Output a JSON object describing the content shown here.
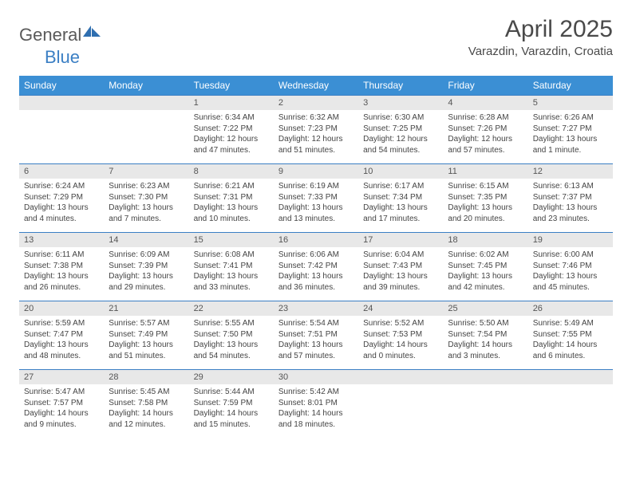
{
  "brand": {
    "text1": "General",
    "text2": "Blue"
  },
  "title": "April 2025",
  "location": "Varazdin, Varazdin, Croatia",
  "colors": {
    "header_blue": "#3b8fd4",
    "rule_blue": "#3b7fc4",
    "daynum_bg": "#e8e8e8",
    "text": "#444444"
  },
  "weekdays": [
    "Sunday",
    "Monday",
    "Tuesday",
    "Wednesday",
    "Thursday",
    "Friday",
    "Saturday"
  ],
  "weeks": [
    [
      null,
      null,
      {
        "n": "1",
        "sr": "6:34 AM",
        "ss": "7:22 PM",
        "dl": "12 hours and 47 minutes."
      },
      {
        "n": "2",
        "sr": "6:32 AM",
        "ss": "7:23 PM",
        "dl": "12 hours and 51 minutes."
      },
      {
        "n": "3",
        "sr": "6:30 AM",
        "ss": "7:25 PM",
        "dl": "12 hours and 54 minutes."
      },
      {
        "n": "4",
        "sr": "6:28 AM",
        "ss": "7:26 PM",
        "dl": "12 hours and 57 minutes."
      },
      {
        "n": "5",
        "sr": "6:26 AM",
        "ss": "7:27 PM",
        "dl": "13 hours and 1 minute."
      }
    ],
    [
      {
        "n": "6",
        "sr": "6:24 AM",
        "ss": "7:29 PM",
        "dl": "13 hours and 4 minutes."
      },
      {
        "n": "7",
        "sr": "6:23 AM",
        "ss": "7:30 PM",
        "dl": "13 hours and 7 minutes."
      },
      {
        "n": "8",
        "sr": "6:21 AM",
        "ss": "7:31 PM",
        "dl": "13 hours and 10 minutes."
      },
      {
        "n": "9",
        "sr": "6:19 AM",
        "ss": "7:33 PM",
        "dl": "13 hours and 13 minutes."
      },
      {
        "n": "10",
        "sr": "6:17 AM",
        "ss": "7:34 PM",
        "dl": "13 hours and 17 minutes."
      },
      {
        "n": "11",
        "sr": "6:15 AM",
        "ss": "7:35 PM",
        "dl": "13 hours and 20 minutes."
      },
      {
        "n": "12",
        "sr": "6:13 AM",
        "ss": "7:37 PM",
        "dl": "13 hours and 23 minutes."
      }
    ],
    [
      {
        "n": "13",
        "sr": "6:11 AM",
        "ss": "7:38 PM",
        "dl": "13 hours and 26 minutes."
      },
      {
        "n": "14",
        "sr": "6:09 AM",
        "ss": "7:39 PM",
        "dl": "13 hours and 29 minutes."
      },
      {
        "n": "15",
        "sr": "6:08 AM",
        "ss": "7:41 PM",
        "dl": "13 hours and 33 minutes."
      },
      {
        "n": "16",
        "sr": "6:06 AM",
        "ss": "7:42 PM",
        "dl": "13 hours and 36 minutes."
      },
      {
        "n": "17",
        "sr": "6:04 AM",
        "ss": "7:43 PM",
        "dl": "13 hours and 39 minutes."
      },
      {
        "n": "18",
        "sr": "6:02 AM",
        "ss": "7:45 PM",
        "dl": "13 hours and 42 minutes."
      },
      {
        "n": "19",
        "sr": "6:00 AM",
        "ss": "7:46 PM",
        "dl": "13 hours and 45 minutes."
      }
    ],
    [
      {
        "n": "20",
        "sr": "5:59 AM",
        "ss": "7:47 PM",
        "dl": "13 hours and 48 minutes."
      },
      {
        "n": "21",
        "sr": "5:57 AM",
        "ss": "7:49 PM",
        "dl": "13 hours and 51 minutes."
      },
      {
        "n": "22",
        "sr": "5:55 AM",
        "ss": "7:50 PM",
        "dl": "13 hours and 54 minutes."
      },
      {
        "n": "23",
        "sr": "5:54 AM",
        "ss": "7:51 PM",
        "dl": "13 hours and 57 minutes."
      },
      {
        "n": "24",
        "sr": "5:52 AM",
        "ss": "7:53 PM",
        "dl": "14 hours and 0 minutes."
      },
      {
        "n": "25",
        "sr": "5:50 AM",
        "ss": "7:54 PM",
        "dl": "14 hours and 3 minutes."
      },
      {
        "n": "26",
        "sr": "5:49 AM",
        "ss": "7:55 PM",
        "dl": "14 hours and 6 minutes."
      }
    ],
    [
      {
        "n": "27",
        "sr": "5:47 AM",
        "ss": "7:57 PM",
        "dl": "14 hours and 9 minutes."
      },
      {
        "n": "28",
        "sr": "5:45 AM",
        "ss": "7:58 PM",
        "dl": "14 hours and 12 minutes."
      },
      {
        "n": "29",
        "sr": "5:44 AM",
        "ss": "7:59 PM",
        "dl": "14 hours and 15 minutes."
      },
      {
        "n": "30",
        "sr": "5:42 AM",
        "ss": "8:01 PM",
        "dl": "14 hours and 18 minutes."
      },
      null,
      null,
      null
    ]
  ],
  "labels": {
    "sunrise": "Sunrise:",
    "sunset": "Sunset:",
    "daylight": "Daylight:"
  }
}
